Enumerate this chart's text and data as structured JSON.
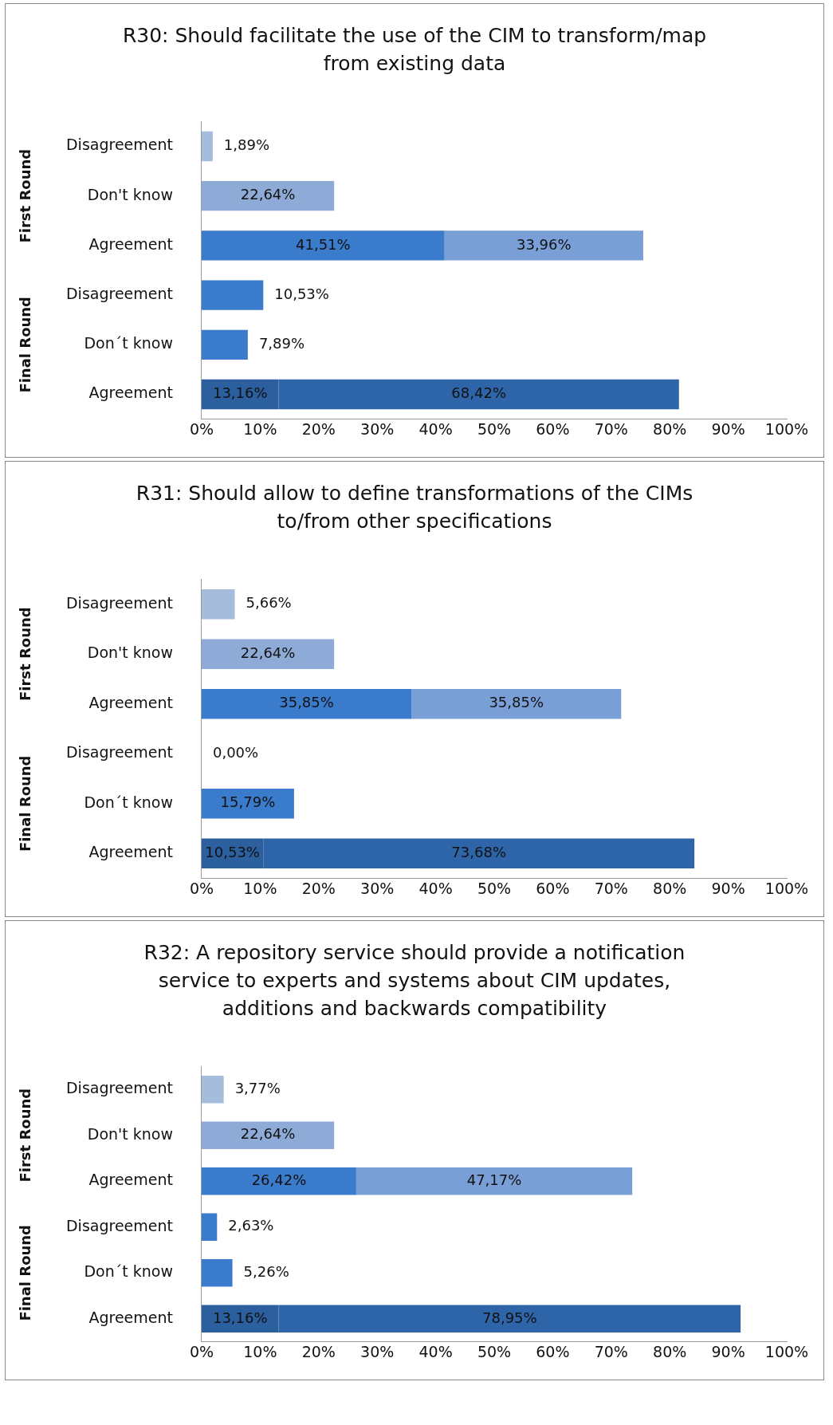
{
  "chart_data": [
    {
      "type": "bar",
      "orientation": "horizontal",
      "stacked": true,
      "title": "R30: Should facilitate the use of the CIM to transform/map from existing data",
      "categories": [
        "Disagreement",
        "Don't know",
        "Agreement",
        "Disagreement",
        "Don´t know",
        "Agreement"
      ],
      "annotations": [
        "First Round",
        "Final Round"
      ],
      "series": [
        {
          "colors": [
            "#a6bcdc",
            "#8eaad6",
            "#3b7bcc",
            "#3b7bcc",
            "#3b7bcc",
            "#2b5f9e"
          ],
          "values": [
            1.89,
            22.64,
            41.51,
            10.53,
            7.89,
            13.16
          ],
          "value_labels": [
            "1,89%",
            "22,64%",
            "41,51%",
            "10,53%",
            "7,89%",
            "13,16%"
          ]
        },
        {
          "colors": [
            "#7a9fd6",
            "#7a9fd6",
            "#7a9fd6",
            "#7a9fd6",
            "#7a9fd6",
            "#2e65a8"
          ],
          "values": [
            null,
            null,
            33.96,
            null,
            null,
            68.42
          ],
          "value_labels": [
            null,
            null,
            "33,96%",
            null,
            null,
            "68,42%"
          ]
        }
      ],
      "xlim": [
        0,
        100
      ],
      "xticks": [
        {
          "value": 0,
          "label": "0%"
        },
        {
          "value": 10,
          "label": "10%"
        },
        {
          "value": 20,
          "label": "20%"
        },
        {
          "value": 30,
          "label": "30%"
        },
        {
          "value": 40,
          "label": "40%"
        },
        {
          "value": 50,
          "label": "50%"
        },
        {
          "value": 60,
          "label": "60%"
        },
        {
          "value": 70,
          "label": "70%"
        },
        {
          "value": 80,
          "label": "80%"
        },
        {
          "value": 90,
          "label": "90%"
        },
        {
          "value": 100,
          "label": "100%"
        }
      ],
      "legend": false,
      "grid": false
    },
    {
      "type": "bar",
      "orientation": "horizontal",
      "stacked": true,
      "title": "R31: Should allow to define transformations of the CIMs to/from other specifications",
      "categories": [
        "Disagreement",
        "Don't know",
        "Agreement",
        "Disagreement",
        "Don´t know",
        "Agreement"
      ],
      "annotations": [
        "First Round",
        "Final Round"
      ],
      "series": [
        {
          "colors": [
            "#a6bcdc",
            "#8eaad6",
            "#3b7bcc",
            "#3b7bcc",
            "#3b7bcc",
            "#2b5f9e"
          ],
          "values": [
            5.66,
            22.64,
            35.85,
            0,
            15.79,
            10.53
          ],
          "value_labels": [
            "5,66%",
            "22,64%",
            "35,85%",
            "0,00%",
            "15,79%",
            "10,53%"
          ]
        },
        {
          "colors": [
            "#7a9fd6",
            "#7a9fd6",
            "#7a9fd6",
            "#7a9fd6",
            "#7a9fd6",
            "#2e65a8"
          ],
          "values": [
            null,
            null,
            35.85,
            null,
            null,
            73.68
          ],
          "value_labels": [
            null,
            null,
            "35,85%",
            null,
            null,
            "73,68%"
          ]
        }
      ],
      "xlim": [
        0,
        100
      ],
      "xticks": [
        {
          "value": 0,
          "label": "0%"
        },
        {
          "value": 10,
          "label": "10%"
        },
        {
          "value": 20,
          "label": "20%"
        },
        {
          "value": 30,
          "label": "30%"
        },
        {
          "value": 40,
          "label": "40%"
        },
        {
          "value": 50,
          "label": "50%"
        },
        {
          "value": 60,
          "label": "60%"
        },
        {
          "value": 70,
          "label": "70%"
        },
        {
          "value": 80,
          "label": "80%"
        },
        {
          "value": 90,
          "label": "90%"
        },
        {
          "value": 100,
          "label": "100%"
        }
      ],
      "legend": false,
      "grid": false
    },
    {
      "type": "bar",
      "orientation": "horizontal",
      "stacked": true,
      "title": "R32: A repository service should provide a notification service to experts and systems about CIM updates, additions and backwards compatibility",
      "categories": [
        "Disagreement",
        "Don't know",
        "Agreement",
        "Disagreement",
        "Don´t know",
        "Agreement"
      ],
      "annotations": [
        "First Round",
        "Final Round"
      ],
      "series": [
        {
          "colors": [
            "#a6bcdc",
            "#8eaad6",
            "#3b7bcc",
            "#3b7bcc",
            "#3b7bcc",
            "#2b5f9e"
          ],
          "values": [
            3.77,
            22.64,
            26.42,
            2.63,
            5.26,
            13.16
          ],
          "value_labels": [
            "3,77%",
            "22,64%",
            "26,42%",
            "2,63%",
            "5,26%",
            "13,16%"
          ]
        },
        {
          "colors": [
            "#7a9fd6",
            "#7a9fd6",
            "#7a9fd6",
            "#7a9fd6",
            "#7a9fd6",
            "#2e65a8"
          ],
          "values": [
            null,
            null,
            47.17,
            null,
            null,
            78.95
          ],
          "value_labels": [
            null,
            null,
            "47,17%",
            null,
            null,
            "78,95%"
          ]
        }
      ],
      "xlim": [
        0,
        100
      ],
      "xticks": [
        {
          "value": 0,
          "label": "0%"
        },
        {
          "value": 10,
          "label": "10%"
        },
        {
          "value": 20,
          "label": "20%"
        },
        {
          "value": 30,
          "label": "30%"
        },
        {
          "value": 40,
          "label": "40%"
        },
        {
          "value": 50,
          "label": "50%"
        },
        {
          "value": 60,
          "label": "60%"
        },
        {
          "value": 70,
          "label": "70%"
        },
        {
          "value": 80,
          "label": "80%"
        },
        {
          "value": 90,
          "label": "90%"
        },
        {
          "value": 100,
          "label": "100%"
        }
      ],
      "legend": false,
      "grid": false
    }
  ]
}
